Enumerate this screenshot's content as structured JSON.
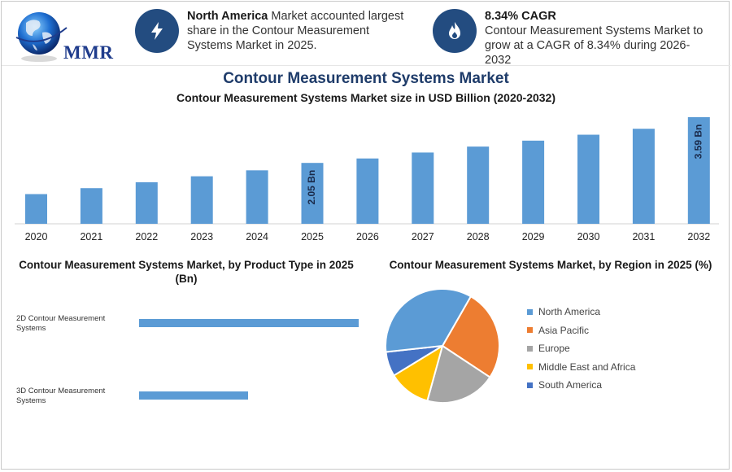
{
  "header": {
    "logo_text": "MMR",
    "info_left": {
      "icon": "lightning-icon",
      "bold": "North America",
      "text": " Market accounted largest share in the Contour Measurement Systems Market in 2025."
    },
    "info_right": {
      "icon": "growth-flame-icon",
      "bold": "8.34% CAGR",
      "text": "Contour Measurement Systems Market to grow at a CAGR of 8.34% during 2026-2032"
    }
  },
  "chart_data": [
    {
      "type": "bar",
      "title": "Contour Measurement Systems Market",
      "subtitle": "Contour Measurement Systems Market size in USD Billion (2020-2032)",
      "categories": [
        "2020",
        "2021",
        "2022",
        "2023",
        "2024",
        "2025",
        "2026",
        "2027",
        "2028",
        "2029",
        "2030",
        "2031",
        "2032"
      ],
      "values": [
        1.0,
        1.2,
        1.4,
        1.6,
        1.8,
        2.05,
        2.2,
        2.4,
        2.6,
        2.8,
        3.0,
        3.2,
        3.59
      ],
      "data_labels": {
        "5": "2.05 Bn",
        "12": "3.59 Bn"
      },
      "color": "#5b9bd5",
      "ylim": [
        0,
        3.59
      ]
    },
    {
      "type": "bar",
      "orientation": "horizontal",
      "title": "Contour Measurement Systems Market, by Product Type in 2025 (Bn)",
      "categories": [
        "2D Contour Measurement Systems",
        "3D Contour Measurement Systems"
      ],
      "values": [
        1.35,
        0.67
      ],
      "color": "#5b9bd5"
    },
    {
      "type": "pie",
      "title": "Contour Measurement Systems Market, by Region in 2025 (%)",
      "legend_position": "right",
      "slices": [
        {
          "label": "North America",
          "value": 35,
          "color": "#5b9bd5"
        },
        {
          "label": "Asia Pacific",
          "value": 26,
          "color": "#ed7d31"
        },
        {
          "label": "Europe",
          "value": 20,
          "color": "#a5a5a5"
        },
        {
          "label": "Middle East and Africa",
          "value": 12,
          "color": "#ffc000"
        },
        {
          "label": "South America",
          "value": 7,
          "color": "#4472c4"
        }
      ]
    }
  ]
}
